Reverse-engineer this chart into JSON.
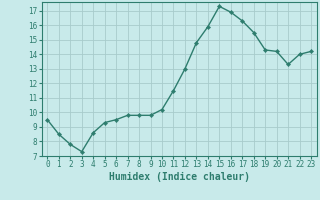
{
  "x": [
    0,
    1,
    2,
    3,
    4,
    5,
    6,
    7,
    8,
    9,
    10,
    11,
    12,
    13,
    14,
    15,
    16,
    17,
    18,
    19,
    20,
    21,
    22,
    23
  ],
  "y": [
    9.5,
    8.5,
    7.8,
    7.3,
    8.6,
    9.3,
    9.5,
    9.8,
    9.8,
    9.8,
    10.2,
    11.5,
    13.0,
    14.8,
    15.9,
    17.3,
    16.9,
    16.3,
    15.5,
    14.3,
    14.2,
    13.3,
    14.0,
    14.2
  ],
  "line_color": "#2e7d6e",
  "marker": "D",
  "marker_size": 2.2,
  "bg_color": "#c8eaea",
  "grid_color": "#a8cccc",
  "xlabel": "Humidex (Indice chaleur)",
  "xlim": [
    -0.5,
    23.5
  ],
  "ylim": [
    7,
    17.6
  ],
  "yticks": [
    7,
    8,
    9,
    10,
    11,
    12,
    13,
    14,
    15,
    16,
    17
  ],
  "xticks": [
    0,
    1,
    2,
    3,
    4,
    5,
    6,
    7,
    8,
    9,
    10,
    11,
    12,
    13,
    14,
    15,
    16,
    17,
    18,
    19,
    20,
    21,
    22,
    23
  ],
  "tick_color": "#2e7d6e",
  "label_color": "#2e7d6e",
  "axis_color": "#2e7d6e",
  "tick_fontsize": 5.5,
  "xlabel_fontsize": 7,
  "linewidth": 1.0
}
